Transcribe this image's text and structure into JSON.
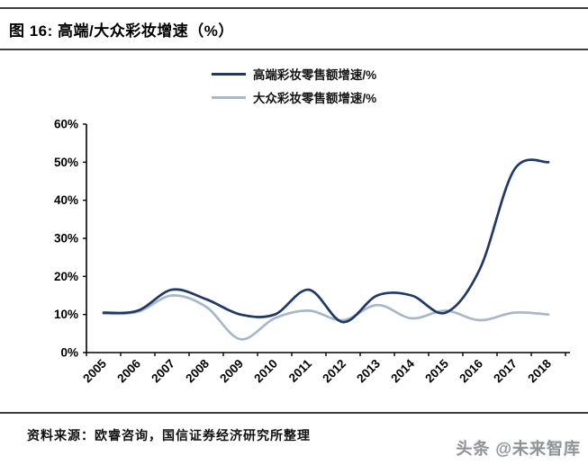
{
  "header": {
    "title": "图 16: 高端/大众彩妆增速（%）"
  },
  "chart_data": {
    "type": "line",
    "title": "高端/大众彩妆增速（%）",
    "categories": [
      "2005",
      "2006",
      "2007",
      "2008",
      "2009",
      "2010",
      "2011",
      "2012",
      "2013",
      "2014",
      "2015",
      "2016",
      "2017",
      "2018"
    ],
    "series": [
      {
        "name": "高端彩妆零售额增速/%",
        "color": "#1F3864",
        "values": [
          10.5,
          11,
          16.5,
          14,
          10,
          10,
          16.5,
          8,
          15,
          15,
          10.5,
          22,
          48,
          50
        ]
      },
      {
        "name": "大众彩妆零售额增速/%",
        "color": "#A9B8C7",
        "values": [
          10.2,
          10.7,
          15,
          12,
          3.5,
          9,
          11,
          8.5,
          12.5,
          9,
          11,
          8.5,
          10.5,
          10
        ]
      }
    ],
    "ylim": [
      0,
      60
    ],
    "y_ticks": [
      "0%",
      "10%",
      "20%",
      "30%",
      "40%",
      "50%",
      "60%"
    ],
    "grid": false,
    "legend_position": "top-center",
    "axis_color": "#000000"
  },
  "footer": {
    "source": "资料来源：欧睿咨询，国信证券经济研究所整理",
    "watermark": "头条 @未来智库"
  }
}
